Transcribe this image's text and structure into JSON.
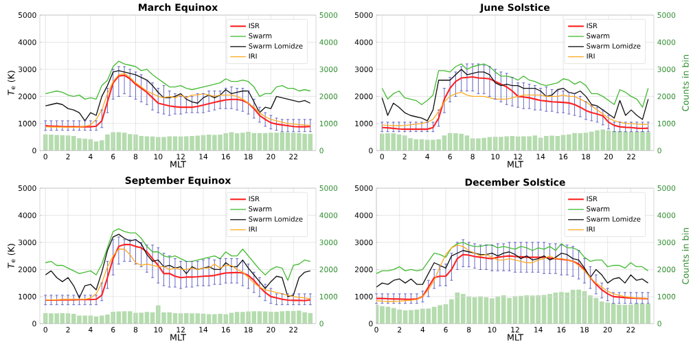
{
  "chart_data": [
    {
      "type": "line",
      "title": "March Equinox",
      "xlabel": "MLT",
      "ylabel": "*T*$_{e}$ (K)",
      "xlim": [
        -0.5,
        24
      ],
      "xticks": [
        0,
        2,
        4,
        6,
        8,
        10,
        12,
        14,
        16,
        18,
        20,
        22
      ],
      "ylim": [
        0,
        5000
      ],
      "yticks": [
        0,
        1000,
        2000,
        3000,
        4000,
        5000
      ],
      "y2lim": [
        0,
        5000
      ],
      "y2ticks": [
        0,
        1000,
        2000,
        3000,
        4000,
        5000
      ],
      "grid": true,
      "legend": "top right",
      "x": [
        0,
        0.5,
        1,
        1.5,
        2,
        2.5,
        3,
        3.5,
        4,
        4.5,
        5,
        5.5,
        6,
        6.5,
        7,
        7.5,
        8,
        8.5,
        9,
        9.5,
        10,
        10.5,
        11,
        11.5,
        12,
        12.5,
        13,
        13.5,
        14,
        14.5,
        15,
        15.5,
        16,
        16.5,
        17,
        17.5,
        18,
        18.5,
        19,
        19.5,
        20,
        20.5,
        21,
        21.5,
        22,
        22.5,
        23,
        23.5
      ],
      "series": [
        {
          "type": "bar",
          "axis": "y2",
          "color": "#b5dcae",
          "values": [
            600,
            590,
            580,
            570,
            560,
            540,
            460,
            440,
            420,
            340,
            380,
            600,
            680,
            680,
            660,
            610,
            600,
            540,
            530,
            520,
            500,
            500,
            530,
            530,
            520,
            530,
            540,
            550,
            570,
            590,
            580,
            590,
            640,
            680,
            640,
            660,
            700,
            650,
            650,
            650,
            660,
            660,
            680,
            670,
            660,
            650,
            620,
            620
          ]
        },
        {
          "name": "ISR",
          "color": "#ff2222",
          "values": [
            920,
            900,
            900,
            890,
            880,
            880,
            880,
            880,
            880,
            900,
            1100,
            1800,
            2500,
            2750,
            2780,
            2650,
            2450,
            2300,
            2150,
            1950,
            1750,
            1700,
            1650,
            1620,
            1600,
            1600,
            1600,
            1630,
            1680,
            1730,
            1780,
            1830,
            1870,
            1890,
            1890,
            1850,
            1750,
            1550,
            1300,
            1150,
            1030,
            980,
            950,
            920,
            890,
            880,
            880,
            890
          ],
          "errors": [
            [
              750,
              1100
            ],
            [
              750,
              1100
            ],
            [
              750,
              1100
            ],
            [
              750,
              1100
            ],
            [
              750,
              1100
            ],
            [
              750,
              1100
            ],
            [
              750,
              1100
            ],
            [
              750,
              1100
            ],
            [
              750,
              1100
            ],
            [
              750,
              1100
            ],
            [
              850,
              1500
            ],
            [
              1400,
              2300
            ],
            [
              1900,
              3000
            ],
            [
              2000,
              3100
            ],
            [
              2100,
              3100
            ],
            [
              2000,
              3000
            ],
            [
              1900,
              2900
            ],
            [
              1800,
              2800
            ],
            [
              1700,
              2600
            ],
            [
              1500,
              2500
            ],
            [
              1400,
              2300
            ],
            [
              1350,
              2400
            ],
            [
              1300,
              2200
            ],
            [
              1350,
              2100
            ],
            [
              1350,
              2000
            ],
            [
              1400,
              2000
            ],
            [
              1400,
              2000
            ],
            [
              1400,
              2100
            ],
            [
              1400,
              2100
            ],
            [
              1450,
              2200
            ],
            [
              1500,
              2200
            ],
            [
              1550,
              2200
            ],
            [
              1550,
              2300
            ],
            [
              1550,
              2350
            ],
            [
              1500,
              2300
            ],
            [
              1450,
              2300
            ],
            [
              1350,
              2200
            ],
            [
              1200,
              1900
            ],
            [
              1050,
              1600
            ],
            [
              900,
              1400
            ],
            [
              800,
              1300
            ],
            [
              750,
              1200
            ],
            [
              700,
              1150
            ],
            [
              700,
              1150
            ],
            [
              700,
              1150
            ],
            [
              700,
              1150
            ],
            [
              700,
              1150
            ],
            [
              700,
              1150
            ]
          ]
        },
        {
          "name": "Swarm",
          "color": "#44bb33",
          "values": [
            2100,
            2150,
            2200,
            2150,
            2050,
            2000,
            2050,
            1900,
            1950,
            1900,
            2400,
            2600,
            3100,
            3300,
            3200,
            3150,
            3100,
            2950,
            3000,
            2800,
            2650,
            2500,
            2350,
            2350,
            2400,
            2300,
            2250,
            2300,
            2350,
            2400,
            2450,
            2500,
            2650,
            2550,
            2550,
            2600,
            2550,
            2350,
            2000,
            2100,
            2100,
            2350,
            2400,
            2300,
            2300,
            2200,
            2250,
            2200
          ]
        },
        {
          "name": "Swarm Lomidze",
          "color": "#111111",
          "values": [
            1650,
            1700,
            1750,
            1700,
            1550,
            1500,
            1400,
            1100,
            1400,
            1300,
            2000,
            2400,
            2900,
            2950,
            2900,
            2850,
            2800,
            2700,
            2600,
            2400,
            2150,
            1950,
            1950,
            2000,
            2100,
            1900,
            1800,
            1750,
            1950,
            2050,
            1950,
            2050,
            2250,
            2100,
            2150,
            2200,
            2200,
            1800,
            1400,
            1600,
            1550,
            2000,
            1950,
            1900,
            1850,
            1800,
            1850,
            1750
          ]
        },
        {
          "name": "IRI",
          "color": "#ffaa22",
          "values": [
            880,
            870,
            870,
            870,
            860,
            860,
            870,
            900,
            950,
            1150,
            1500,
            2100,
            2550,
            2800,
            2850,
            2700,
            2500,
            2350,
            2200,
            2100,
            2000,
            1950,
            2000,
            1950,
            2050,
            1950,
            2050,
            2050,
            2100,
            2050,
            2000,
            2050,
            2050,
            2050,
            2000,
            1900,
            1750,
            1600,
            1400,
            1250,
            1150,
            1100,
            1050,
            1000,
            980,
            960,
            950,
            930
          ]
        }
      ]
    },
    {
      "type": "line",
      "title": "June Solstice",
      "xlabel": "MLT",
      "y2label": "Counts in bin",
      "xlim": [
        -0.5,
        24
      ],
      "xticks": [
        0,
        2,
        4,
        6,
        8,
        10,
        12,
        14,
        16,
        18,
        20,
        22
      ],
      "ylim": [
        0,
        5000
      ],
      "yticks": [
        0,
        1000,
        2000,
        3000,
        4000,
        5000
      ],
      "y2lim": [
        0,
        5000
      ],
      "y2ticks": [
        0,
        1000,
        2000,
        3000,
        4000,
        5000
      ],
      "grid": true,
      "legend": "top right",
      "x": [
        0,
        0.5,
        1,
        1.5,
        2,
        2.5,
        3,
        3.5,
        4,
        4.5,
        5,
        5.5,
        6,
        6.5,
        7,
        7.5,
        8,
        8.5,
        9,
        9.5,
        10,
        10.5,
        11,
        11.5,
        12,
        12.5,
        13,
        13.5,
        14,
        14.5,
        15,
        15.5,
        16,
        16.5,
        17,
        17.5,
        18,
        18.5,
        19,
        19.5,
        20,
        20.5,
        21,
        21.5,
        22,
        22.5,
        23,
        23.5
      ],
      "series": [
        {
          "type": "bar",
          "axis": "y2",
          "color": "#b5dcae",
          "values": [
            630,
            640,
            640,
            600,
            560,
            460,
            420,
            420,
            400,
            400,
            420,
            560,
            650,
            640,
            620,
            560,
            450,
            450,
            470,
            500,
            510,
            510,
            530,
            540,
            520,
            530,
            530,
            560,
            480,
            540,
            550,
            540,
            580,
            600,
            650,
            640,
            660,
            700,
            750,
            780,
            740,
            720,
            720,
            700,
            700,
            700,
            720,
            680
          ]
        },
        {
          "name": "ISR",
          "color": "#ff2222",
          "values": [
            850,
            840,
            820,
            800,
            790,
            790,
            790,
            790,
            790,
            850,
            1200,
            1900,
            2300,
            2550,
            2680,
            2700,
            2720,
            2680,
            2670,
            2650,
            2550,
            2450,
            2350,
            2200,
            2000,
            1980,
            1950,
            1900,
            1850,
            1830,
            1800,
            1790,
            1780,
            1760,
            1700,
            1600,
            1480,
            1400,
            1350,
            1280,
            1050,
            930,
            880,
            860,
            850,
            830,
            820,
            830
          ],
          "errors": [
            [
              700,
              1050
            ],
            [
              700,
              1050
            ],
            [
              700,
              1050
            ],
            [
              700,
              1050
            ],
            [
              700,
              1050
            ],
            [
              700,
              1050
            ],
            [
              700,
              1050
            ],
            [
              700,
              1050
            ],
            [
              700,
              1050
            ],
            [
              700,
              1050
            ],
            [
              900,
              1500
            ],
            [
              1400,
              2300
            ],
            [
              1800,
              2700
            ],
            [
              2000,
              2900
            ],
            [
              2200,
              3100
            ],
            [
              2200,
              3200
            ],
            [
              2200,
              3200
            ],
            [
              2100,
              3200
            ],
            [
              2100,
              3150
            ],
            [
              2000,
              3100
            ],
            [
              1900,
              3000
            ],
            [
              1800,
              2900
            ],
            [
              1700,
              2850
            ],
            [
              1650,
              2700
            ],
            [
              1600,
              2500
            ],
            [
              1550,
              2500
            ],
            [
              1550,
              2450
            ],
            [
              1500,
              2400
            ],
            [
              1500,
              2300
            ],
            [
              1450,
              2350
            ],
            [
              1450,
              2250
            ],
            [
              1400,
              2200
            ],
            [
              1400,
              2200
            ],
            [
              1350,
              2150
            ],
            [
              1300,
              2100
            ],
            [
              1250,
              2000
            ],
            [
              1150,
              1800
            ],
            [
              1100,
              1650
            ],
            [
              1050,
              1600
            ],
            [
              950,
              1500
            ],
            [
              800,
              1300
            ],
            [
              700,
              1050
            ],
            [
              700,
              1050
            ],
            [
              700,
              1050
            ],
            [
              700,
              1050
            ],
            [
              700,
              1050
            ],
            [
              700,
              1050
            ],
            [
              700,
              1050
            ]
          ]
        },
        {
          "name": "Swarm",
          "color": "#44bb33",
          "values": [
            2300,
            1900,
            2100,
            2200,
            1950,
            1900,
            1850,
            1700,
            1850,
            2050,
            2950,
            2950,
            2900,
            3100,
            3200,
            3000,
            3100,
            3150,
            3200,
            3100,
            2900,
            2750,
            2750,
            2700,
            2600,
            2750,
            2600,
            2550,
            2450,
            2400,
            2450,
            2500,
            2650,
            2600,
            2450,
            2550,
            2400,
            2100,
            2100,
            2000,
            1850,
            1700,
            2250,
            2150,
            2000,
            1900,
            1600,
            2300
          ]
        },
        {
          "name": "Swarm Lomidze",
          "color": "#111111",
          "values": [
            1950,
            1300,
            1750,
            1600,
            1400,
            1300,
            1250,
            1200,
            1100,
            1500,
            2600,
            2600,
            2600,
            2800,
            3000,
            2800,
            2850,
            2900,
            2900,
            2800,
            2500,
            2400,
            2450,
            2400,
            2400,
            2300,
            2300,
            2300,
            2200,
            2000,
            2050,
            2250,
            2300,
            2150,
            2100,
            2200,
            2000,
            1700,
            1650,
            1500,
            1350,
            1200,
            1850,
            1300,
            1500,
            1300,
            1150,
            1900
          ]
        },
        {
          "name": "IRI",
          "color": "#ffaa22",
          "values": [
            950,
            930,
            920,
            920,
            930,
            950,
            980,
            1000,
            1050,
            1150,
            1450,
            1800,
            2000,
            2100,
            2150,
            2050,
            2000,
            2000,
            2000,
            1950,
            1900,
            1900,
            1900,
            1950,
            2000,
            2050,
            2050,
            2050,
            2050,
            2000,
            2000,
            2000,
            2050,
            2000,
            2000,
            1900,
            1800,
            1650,
            1500,
            1350,
            1200,
            1100,
            1050,
            1000,
            1000,
            980,
            970,
            960
          ]
        }
      ]
    },
    {
      "type": "line",
      "title": "September Equinox",
      "xlabel": "MLT",
      "ylabel": "*T*$_{e}$ (K)",
      "xlim": [
        -0.5,
        24
      ],
      "xticks": [
        0,
        2,
        4,
        6,
        8,
        10,
        12,
        14,
        16,
        18,
        20,
        22
      ],
      "ylim": [
        0,
        5000
      ],
      "yticks": [
        0,
        1000,
        2000,
        3000,
        4000,
        5000
      ],
      "y2lim": [
        0,
        5000
      ],
      "y2ticks": [
        0,
        1000,
        2000,
        3000,
        4000,
        5000
      ],
      "grid": true,
      "legend": "top right",
      "x": [
        0,
        0.5,
        1,
        1.5,
        2,
        2.5,
        3,
        3.5,
        4,
        4.5,
        5,
        5.5,
        6,
        6.5,
        7,
        7.5,
        8,
        8.5,
        9,
        9.5,
        10,
        10.5,
        11,
        11.5,
        12,
        12.5,
        13,
        13.5,
        14,
        14.5,
        15,
        15.5,
        16,
        16.5,
        17,
        17.5,
        18,
        18.5,
        19,
        19.5,
        20,
        20.5,
        21,
        21.5,
        22,
        22.5,
        23,
        23.5
      ],
      "series": [
        {
          "type": "bar",
          "axis": "y2",
          "color": "#b5dcae",
          "values": [
            390,
            380,
            380,
            390,
            380,
            360,
            300,
            300,
            300,
            270,
            300,
            340,
            440,
            450,
            460,
            460,
            400,
            410,
            430,
            420,
            680,
            420,
            420,
            390,
            380,
            390,
            380,
            380,
            370,
            350,
            350,
            360,
            350,
            400,
            430,
            430,
            450,
            460,
            460,
            450,
            440,
            440,
            460,
            470,
            470,
            480,
            420,
            390
          ]
        },
        {
          "name": "ISR",
          "color": "#ff2222",
          "values": [
            870,
            870,
            870,
            880,
            880,
            880,
            890,
            890,
            890,
            900,
            1050,
            1700,
            2400,
            2850,
            2920,
            2920,
            2850,
            2800,
            2650,
            2400,
            2150,
            1850,
            1850,
            1750,
            1700,
            1720,
            1720,
            1730,
            1750,
            1760,
            1780,
            1830,
            1870,
            1880,
            1890,
            1870,
            1780,
            1600,
            1350,
            1150,
            1000,
            950,
            900,
            870,
            860,
            860,
            850,
            880
          ],
          "errors": [
            [
              700,
              1050
            ],
            [
              700,
              1050
            ],
            [
              700,
              1050
            ],
            [
              700,
              1050
            ],
            [
              700,
              1050
            ],
            [
              700,
              1050
            ],
            [
              700,
              1050
            ],
            [
              700,
              1050
            ],
            [
              700,
              1050
            ],
            [
              700,
              1050
            ],
            [
              850,
              1500
            ],
            [
              1300,
              2300
            ],
            [
              1800,
              3100
            ],
            [
              2200,
              3200
            ],
            [
              2300,
              3100
            ],
            [
              2300,
              3100
            ],
            [
              2200,
              3100
            ],
            [
              2100,
              3000
            ],
            [
              1900,
              2900
            ],
            [
              1700,
              2900
            ],
            [
              1500,
              2800
            ],
            [
              1400,
              2600
            ],
            [
              1350,
              2500
            ],
            [
              1350,
              2400
            ],
            [
              1300,
              2300
            ],
            [
              1350,
              2300
            ],
            [
              1350,
              2300
            ],
            [
              1400,
              2300
            ],
            [
              1400,
              2350
            ],
            [
              1400,
              2400
            ],
            [
              1450,
              2350
            ],
            [
              1450,
              2400
            ],
            [
              1500,
              2400
            ],
            [
              1500,
              2400
            ],
            [
              1500,
              2400
            ],
            [
              1400,
              2300
            ],
            [
              1300,
              2200
            ],
            [
              1150,
              1900
            ],
            [
              1000,
              1700
            ],
            [
              850,
              1450
            ],
            [
              750,
              1300
            ],
            [
              700,
              1100
            ],
            [
              700,
              1100
            ],
            [
              700,
              1100
            ],
            [
              700,
              1100
            ],
            [
              700,
              1100
            ],
            [
              700,
              1100
            ],
            [
              700,
              1100
            ]
          ]
        },
        {
          "name": "Swarm",
          "color": "#44bb33",
          "values": [
            2250,
            2300,
            2150,
            2150,
            2050,
            1950,
            1850,
            1900,
            1950,
            1800,
            2200,
            2800,
            3400,
            3500,
            3400,
            3350,
            3350,
            3150,
            2850,
            2650,
            2650,
            2500,
            2450,
            2500,
            2400,
            2300,
            2300,
            2350,
            2400,
            2450,
            2500,
            2400,
            2650,
            2500,
            2500,
            2750,
            2500,
            2250,
            2000,
            1800,
            2000,
            2100,
            2050,
            1600,
            2150,
            2200,
            2350,
            2300
          ]
        },
        {
          "name": "Swarm Lomidze",
          "color": "#111111",
          "values": [
            1800,
            1950,
            1700,
            1550,
            1700,
            1400,
            950,
            1400,
            1450,
            1250,
            1900,
            2700,
            3200,
            3300,
            3150,
            3050,
            3100,
            2950,
            2550,
            2300,
            2350,
            2100,
            2150,
            2050,
            2100,
            1850,
            2100,
            2000,
            2050,
            2100,
            2000,
            2000,
            2250,
            2100,
            2100,
            2350,
            2050,
            1800,
            1550,
            1300,
            1550,
            1750,
            1700,
            1000,
            1050,
            1700,
            1900,
            1950
          ]
        },
        {
          "name": "IRI",
          "color": "#ffaa22",
          "values": [
            880,
            880,
            880,
            890,
            900,
            890,
            900,
            900,
            950,
            1100,
            1500,
            2100,
            2500,
            2750,
            2750,
            2550,
            2250,
            2150,
            2200,
            2150,
            2100,
            2100,
            2000,
            2050,
            2000,
            2000,
            2050,
            2000,
            2050,
            2050,
            2200,
            2050,
            2150,
            2150,
            2000,
            1900,
            1700,
            1500,
            1350,
            1250,
            1200,
            1150,
            1100,
            1050,
            1000,
            970,
            950,
            920
          ]
        }
      ]
    },
    {
      "type": "line",
      "title": "December Solstice",
      "xlabel": "MLT",
      "y2label": "Counts in bin",
      "xlim": [
        0,
        24
      ],
      "xticks": [
        0,
        2,
        4,
        6,
        8,
        10,
        12,
        14,
        16,
        18,
        20,
        22
      ],
      "ylim": [
        0,
        5000
      ],
      "yticks": [
        0,
        1000,
        2000,
        3000,
        4000,
        5000
      ],
      "y2lim": [
        0,
        5000
      ],
      "y2ticks": [
        0,
        1000,
        2000,
        3000,
        4000,
        5000
      ],
      "grid": true,
      "legend": "top right",
      "x": [
        0,
        0.5,
        1,
        1.5,
        2,
        2.5,
        3,
        3.5,
        4,
        4.5,
        5,
        5.5,
        6,
        6.5,
        7,
        7.5,
        8,
        8.5,
        9,
        9.5,
        10,
        10.5,
        11,
        11.5,
        12,
        12.5,
        13,
        13.5,
        14,
        14.5,
        15,
        15.5,
        16,
        16.5,
        17,
        17.5,
        18,
        18.5,
        19,
        19.5,
        20,
        20.5,
        21,
        21.5,
        22,
        22.5,
        23,
        23.5
      ],
      "series": [
        {
          "type": "bar",
          "axis": "y2",
          "color": "#b5dcae",
          "values": [
            700,
            650,
            620,
            580,
            520,
            490,
            500,
            520,
            550,
            560,
            620,
            680,
            720,
            900,
            1150,
            1100,
            1000,
            980,
            1000,
            980,
            930,
            1000,
            1050,
            950,
            1010,
            1030,
            1050,
            1040,
            1050,
            1060,
            1100,
            1150,
            1170,
            1150,
            1250,
            1260,
            1200,
            1050,
            950,
            820,
            780,
            750,
            700,
            690,
            700,
            750,
            740,
            730
          ]
        },
        {
          "name": "ISR",
          "color": "#ff2222",
          "values": [
            930,
            930,
            920,
            910,
            910,
            900,
            900,
            910,
            1000,
            1350,
            1700,
            1750,
            1750,
            2000,
            2400,
            2550,
            2530,
            2480,
            2450,
            2420,
            2400,
            2450,
            2480,
            2500,
            2480,
            2470,
            2450,
            2450,
            2450,
            2450,
            2420,
            2400,
            2380,
            2350,
            2300,
            2200,
            2000,
            1700,
            1450,
            1250,
            1100,
            1000,
            980,
            960,
            950,
            940,
            930,
            920
          ],
          "errors": [
            [
              750,
              1100
            ],
            [
              750,
              1100
            ],
            [
              750,
              1100
            ],
            [
              750,
              1100
            ],
            [
              750,
              1100
            ],
            [
              750,
              1100
            ],
            [
              750,
              1100
            ],
            [
              750,
              1100
            ],
            [
              800,
              1200
            ],
            [
              1000,
              1600
            ],
            [
              1300,
              2000
            ],
            [
              1400,
              2100
            ],
            [
              1400,
              2200
            ],
            [
              1600,
              2600
            ],
            [
              2000,
              3000
            ],
            [
              2100,
              3100
            ],
            [
              2100,
              3000
            ],
            [
              2050,
              2950
            ],
            [
              2000,
              2900
            ],
            [
              2000,
              2900
            ],
            [
              1950,
              2900
            ],
            [
              1950,
              2950
            ],
            [
              1950,
              2950
            ],
            [
              1950,
              3000
            ],
            [
              1900,
              3000
            ],
            [
              1900,
              3000
            ],
            [
              1900,
              3000
            ],
            [
              1900,
              3000
            ],
            [
              1900,
              3000
            ],
            [
              1850,
              3000
            ],
            [
              1850,
              2950
            ],
            [
              1850,
              2950
            ],
            [
              1800,
              2900
            ],
            [
              1800,
              2900
            ],
            [
              1750,
              2850
            ],
            [
              1650,
              2700
            ],
            [
              1500,
              2400
            ],
            [
              1300,
              2100
            ],
            [
              1100,
              1800
            ],
            [
              950,
              1500
            ],
            [
              850,
              1300
            ],
            [
              750,
              1150
            ],
            [
              750,
              1150
            ],
            [
              750,
              1150
            ],
            [
              750,
              1150
            ],
            [
              750,
              1150
            ],
            [
              750,
              1150
            ],
            [
              750,
              1150
            ]
          ]
        },
        {
          "name": "Swarm",
          "color": "#44bb33",
          "values": [
            1850,
            1950,
            1950,
            2000,
            2100,
            1950,
            2000,
            1950,
            2000,
            2300,
            2600,
            2550,
            2450,
            2800,
            2950,
            3000,
            2900,
            2850,
            2850,
            2900,
            2900,
            2800,
            2850,
            2800,
            2750,
            2850,
            2800,
            2700,
            2800,
            2750,
            2850,
            2700,
            2950,
            2800,
            2800,
            2700,
            2450,
            2300,
            2350,
            2350,
            2100,
            2150,
            2150,
            2050,
            2250,
            2100,
            2100,
            1950
          ]
        },
        {
          "name": "Swarm Lomidze",
          "color": "#111111",
          "values": [
            1350,
            1500,
            1450,
            1600,
            1650,
            1500,
            1650,
            1450,
            1450,
            1850,
            2250,
            2150,
            2050,
            2500,
            2600,
            2700,
            2650,
            2600,
            2550,
            2550,
            2600,
            2500,
            2600,
            2650,
            2550,
            2400,
            2500,
            2350,
            2400,
            2500,
            2350,
            2450,
            2600,
            2550,
            2400,
            2350,
            2050,
            1700,
            2000,
            1800,
            1500,
            1650,
            1700,
            1500,
            1800,
            1600,
            1650,
            1500
          ]
        },
        {
          "name": "IRI",
          "color": "#ffaa22",
          "values": [
            850,
            830,
            820,
            820,
            830,
            850,
            860,
            900,
            1000,
            1250,
            1600,
            2100,
            2550,
            2800,
            2900,
            2850,
            2700,
            2600,
            2500,
            2550,
            2450,
            2350,
            2350,
            2400,
            2350,
            2300,
            2250,
            2250,
            2350,
            2400,
            2500,
            2400,
            2400,
            2350,
            2300,
            2150,
            1950,
            1700,
            1500,
            1350,
            1200,
            1100,
            1050,
            1000,
            970,
            950,
            940,
            930
          ]
        }
      ]
    }
  ]
}
